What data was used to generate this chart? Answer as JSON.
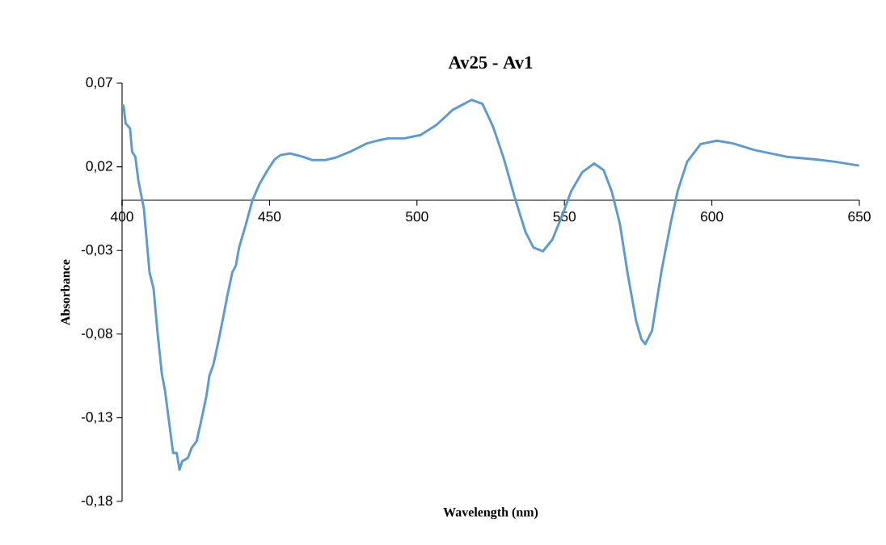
{
  "chart_data": {
    "type": "line",
    "title": "Av25 - Av1",
    "xlabel": "Wavelength (nm)",
    "ylabel": "Absorbance",
    "color": "#5b9bd5",
    "xlim": [
      400,
      650
    ],
    "ylim": [
      -0.18,
      0.07
    ],
    "xticks": [
      400,
      450,
      500,
      550,
      600,
      650
    ],
    "yticks": [
      {
        "value": -0.18,
        "label": "-0,18"
      },
      {
        "value": -0.13,
        "label": "-0,13"
      },
      {
        "value": -0.08,
        "label": "-0,08"
      },
      {
        "value": -0.03,
        "label": "-0,03"
      },
      {
        "value": 0.02,
        "label": "0,02"
      },
      {
        "value": 0.07,
        "label": "0,07"
      }
    ],
    "x": [
      400,
      400.5,
      401.2,
      402.7,
      403.4,
      404.5,
      405.5,
      407.4,
      409.3,
      410.7,
      412,
      413.5,
      414.5,
      415.9,
      417.3,
      418.5,
      419.5,
      420.4,
      422.3,
      423.6,
      425.3,
      426.8,
      428.6,
      429.6,
      431,
      432.7,
      434.3,
      435.7,
      437.4,
      438.6,
      439.7,
      441.9,
      444.2,
      446.6,
      449,
      451.8,
      453.7,
      457,
      461.3,
      464.6,
      468.8,
      472.6,
      477.3,
      483,
      487.4,
      490.2,
      495.7,
      501.2,
      506.6,
      512.1,
      518.5,
      522.2,
      525.8,
      529.5,
      533.1,
      536.8,
      539.5,
      542.7,
      545.9,
      549.6,
      552.3,
      556,
      560.1,
      563.3,
      566,
      568.8,
      571.5,
      574.3,
      576.1,
      577.4,
      579.7,
      582.9,
      586,
      588.4,
      591.6,
      596.2,
      601.7,
      607.2,
      614.5,
      625.4,
      634.6,
      641.9,
      649.9
    ],
    "values": [
      0.0566,
      0.0566,
      0.046,
      0.043,
      0.029,
      0.026,
      0.012,
      -0.005,
      -0.043,
      -0.053,
      -0.0785,
      -0.104,
      -0.113,
      -0.132,
      -0.151,
      -0.151,
      -0.161,
      -0.156,
      -0.154,
      -0.148,
      -0.144,
      -0.132,
      -0.117,
      -0.105,
      -0.098,
      -0.084,
      -0.07,
      -0.057,
      -0.043,
      -0.039,
      -0.028,
      -0.015,
      0,
      0.0097,
      0.017,
      0.0246,
      0.027,
      0.028,
      0.026,
      0.024,
      0.024,
      0.0256,
      0.029,
      0.034,
      0.036,
      0.037,
      0.037,
      0.039,
      0.045,
      0.054,
      0.06,
      0.0576,
      0.044,
      0.0247,
      0.002,
      -0.019,
      -0.0283,
      -0.0305,
      -0.0235,
      -0.0075,
      0.0055,
      0.0167,
      0.022,
      0.018,
      0.0055,
      -0.014,
      -0.0445,
      -0.072,
      -0.083,
      -0.086,
      -0.078,
      -0.0425,
      -0.014,
      0.0055,
      0.023,
      0.0336,
      0.0356,
      0.034,
      0.03,
      0.026,
      0.0245,
      0.023,
      0.0207
    ]
  }
}
